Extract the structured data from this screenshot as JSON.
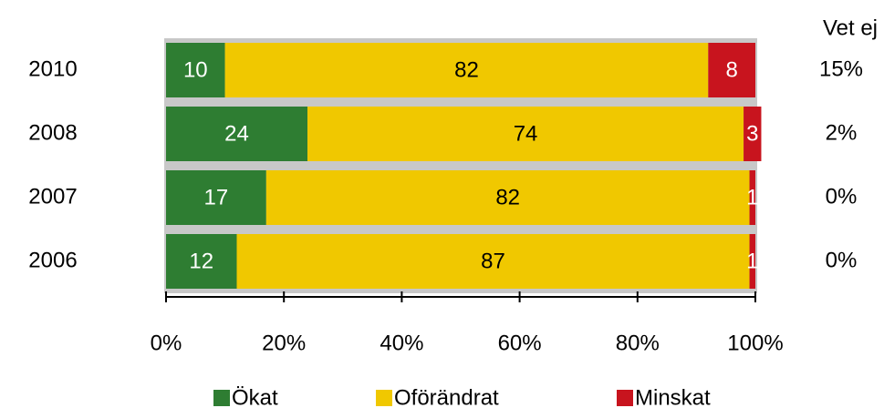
{
  "chart_data": {
    "type": "stacked-barh",
    "categories": [
      "2010",
      "2008",
      "2007",
      "2006"
    ],
    "series": [
      {
        "name": "Ökat",
        "color": "#2e7d32",
        "values": [
          10,
          24,
          17,
          12
        ]
      },
      {
        "name": "Oförändrat",
        "color": "#f0c800",
        "values": [
          82,
          74,
          82,
          87
        ]
      },
      {
        "name": "Minskat",
        "color": "#c8141e",
        "values": [
          8,
          3,
          1,
          1
        ]
      }
    ],
    "xlim": [
      0,
      100
    ],
    "xticks": [
      {
        "value": 0,
        "label": "0%"
      },
      {
        "value": 20,
        "label": "20%"
      },
      {
        "value": 40,
        "label": "40%"
      },
      {
        "value": 60,
        "label": "60%"
      },
      {
        "value": 80,
        "label": "80%"
      },
      {
        "value": 100,
        "label": "100%"
      }
    ],
    "side_column": {
      "title": "Vet ej",
      "labels": [
        "15%",
        "2%",
        "0%",
        "0%"
      ]
    }
  }
}
